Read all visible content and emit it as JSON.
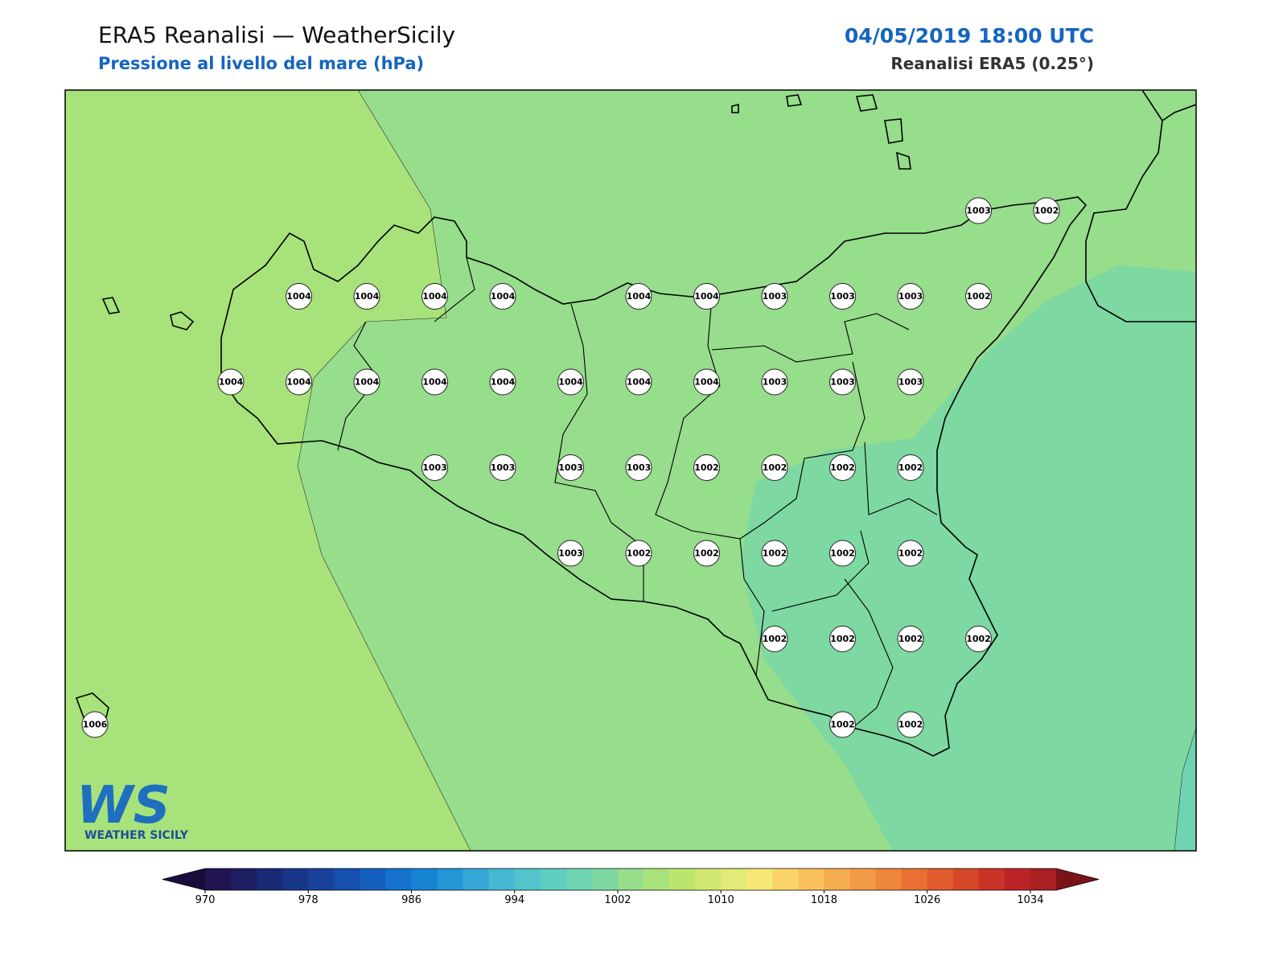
{
  "header": {
    "title": "ERA5 Reanalisi — WeatherSicily",
    "subtitle": "Pressione al livello del mare (hPa)",
    "datetime": "04/05/2019 18:00 UTC",
    "source": "Reanalisi ERA5 (0.25°)"
  },
  "map": {
    "stations": [
      [
        null,
        null,
        null,
        null,
        null,
        null,
        null,
        null,
        null,
        null,
        null,
        null,
        null,
        1003,
        1002
      ],
      [
        null,
        null,
        null,
        1004,
        1004,
        1004,
        1004,
        null,
        1004,
        1004,
        1003,
        1003,
        1003,
        1002,
        null
      ],
      [
        null,
        null,
        1004,
        1004,
        1004,
        1004,
        1004,
        1004,
        1004,
        1004,
        1003,
        1003,
        1003,
        null,
        null
      ],
      [
        null,
        null,
        null,
        null,
        null,
        1003,
        1003,
        1003,
        1003,
        1002,
        1002,
        1002,
        1002,
        null,
        null
      ],
      [
        null,
        null,
        null,
        null,
        null,
        null,
        null,
        1003,
        1002,
        1002,
        1002,
        1002,
        1002,
        null,
        null
      ],
      [
        null,
        null,
        null,
        null,
        null,
        null,
        null,
        null,
        null,
        null,
        1002,
        1002,
        1002,
        1002,
        null
      ],
      [
        1006,
        null,
        null,
        null,
        null,
        null,
        null,
        null,
        null,
        null,
        null,
        1002,
        1002,
        null,
        null
      ]
    ]
  },
  "colorbar": {
    "clim": [
      970,
      1036
    ],
    "ticks": [
      970,
      978,
      986,
      994,
      1002,
      1010,
      1018,
      1026,
      1034
    ],
    "colors": [
      "#221452",
      "#1e1f62",
      "#1b2a75",
      "#183688",
      "#17419b",
      "#1650ae",
      "#1560bf",
      "#1572cc",
      "#1784d3",
      "#2496d6",
      "#35a8d6",
      "#45b8d2",
      "#53c4cb",
      "#5fcdc0",
      "#6ed4b3",
      "#7dd8a2",
      "#96dd8c",
      "#a8e27a",
      "#bce56e",
      "#d0e872",
      "#e2ea78",
      "#f6e874",
      "#fad468",
      "#f9c15c",
      "#f6ad50",
      "#f29a45",
      "#ee863c",
      "#e87034",
      "#e05b2e",
      "#d64729",
      "#ca3327",
      "#bc2326",
      "#a82024"
    ],
    "extend_colors": [
      "#1a0d3e",
      "#7a1418"
    ]
  },
  "logo": {
    "mark": "WS",
    "name": "WEATHER SICILY"
  }
}
